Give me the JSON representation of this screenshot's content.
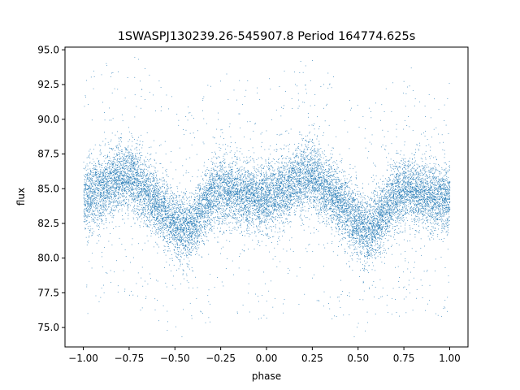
{
  "chart_data": {
    "type": "scatter",
    "title": "1SWASPJ130239.26-545907.8 Period 164774.625s",
    "xlabel": "phase",
    "ylabel": "flux",
    "xlim": [
      -1.1,
      1.1
    ],
    "ylim": [
      73.6,
      95.2
    ],
    "x_ticks": [
      -1.0,
      -0.75,
      -0.5,
      -0.25,
      0.0,
      0.25,
      0.5,
      0.75,
      1.0
    ],
    "x_tick_labels": [
      "−1.00",
      "−0.75",
      "−0.50",
      "−0.25",
      "0.00",
      "0.25",
      "0.50",
      "0.75",
      "1.00"
    ],
    "y_ticks": [
      75.0,
      77.5,
      80.0,
      82.5,
      85.0,
      87.5,
      90.0,
      92.5,
      95.0
    ],
    "y_tick_labels": [
      "75.0",
      "77.5",
      "80.0",
      "82.5",
      "85.0",
      "87.5",
      "90.0",
      "92.5",
      "95.0"
    ],
    "grid": false,
    "legend": "none",
    "point_color": "#1f77b4",
    "series": [
      {
        "x_range": [
          -1.0,
          1.0
        ],
        "approx_point_count": 16000,
        "trend_points": [
          {
            "phase": -1.0,
            "flux": 84.3
          },
          {
            "phase": -0.9,
            "flux": 85.0
          },
          {
            "phase": -0.8,
            "flux": 85.9
          },
          {
            "phase": -0.75,
            "flux": 86.0
          },
          {
            "phase": -0.7,
            "flux": 85.4
          },
          {
            "phase": -0.6,
            "flux": 84.0
          },
          {
            "phase": -0.5,
            "flux": 82.5
          },
          {
            "phase": -0.45,
            "flux": 82.0
          },
          {
            "phase": -0.4,
            "flux": 82.3
          },
          {
            "phase": -0.3,
            "flux": 84.6
          },
          {
            "phase": -0.2,
            "flux": 85.0
          },
          {
            "phase": -0.1,
            "flux": 84.4
          },
          {
            "phase": 0.0,
            "flux": 84.3
          },
          {
            "phase": 0.1,
            "flux": 85.0
          },
          {
            "phase": 0.2,
            "flux": 85.9
          },
          {
            "phase": 0.25,
            "flux": 86.0
          },
          {
            "phase": 0.3,
            "flux": 85.4
          },
          {
            "phase": 0.4,
            "flux": 84.0
          },
          {
            "phase": 0.5,
            "flux": 82.5
          },
          {
            "phase": 0.55,
            "flux": 82.0
          },
          {
            "phase": 0.6,
            "flux": 82.3
          },
          {
            "phase": 0.7,
            "flux": 84.6
          },
          {
            "phase": 0.8,
            "flux": 85.0
          },
          {
            "phase": 0.9,
            "flux": 84.4
          },
          {
            "phase": 1.0,
            "flux": 84.3
          }
        ],
        "scatter_std": 1.2
      }
    ]
  }
}
